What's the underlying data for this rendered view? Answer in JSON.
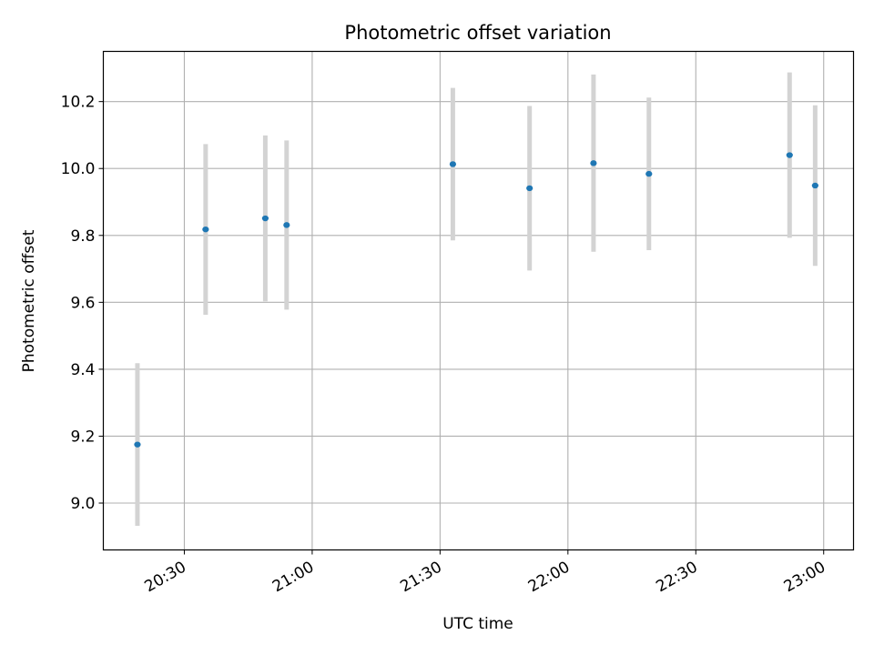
{
  "chart_data": {
    "type": "scatter",
    "title": "Photometric offset variation",
    "xlabel": "UTC time",
    "ylabel": "Photometric offset",
    "x_ticks": [
      "20:30",
      "21:00",
      "21:30",
      "22:00",
      "22:30",
      "23:00"
    ],
    "y_ticks": [
      "9.0",
      "9.2",
      "9.4",
      "9.6",
      "9.8",
      "10.0",
      "10.2"
    ],
    "xlim": [
      "20:11",
      "23:07"
    ],
    "ylim": [
      8.86,
      10.35
    ],
    "grid": true,
    "legend": "none",
    "marker_color": "#1f77b4",
    "errorbar_color": "#d3d3d3",
    "points": [
      {
        "x": "20:19",
        "y": 9.175,
        "err": 0.243
      },
      {
        "x": "20:35",
        "y": 9.818,
        "err": 0.255
      },
      {
        "x": "20:49",
        "y": 9.851,
        "err": 0.248
      },
      {
        "x": "20:54",
        "y": 9.831,
        "err": 0.253
      },
      {
        "x": "21:33",
        "y": 10.013,
        "err": 0.228
      },
      {
        "x": "21:51",
        "y": 9.941,
        "err": 0.246
      },
      {
        "x": "22:06",
        "y": 10.016,
        "err": 0.265
      },
      {
        "x": "22:19",
        "y": 9.984,
        "err": 0.228
      },
      {
        "x": "22:52",
        "y": 10.04,
        "err": 0.247
      },
      {
        "x": "22:58",
        "y": 9.949,
        "err": 0.24
      }
    ]
  }
}
